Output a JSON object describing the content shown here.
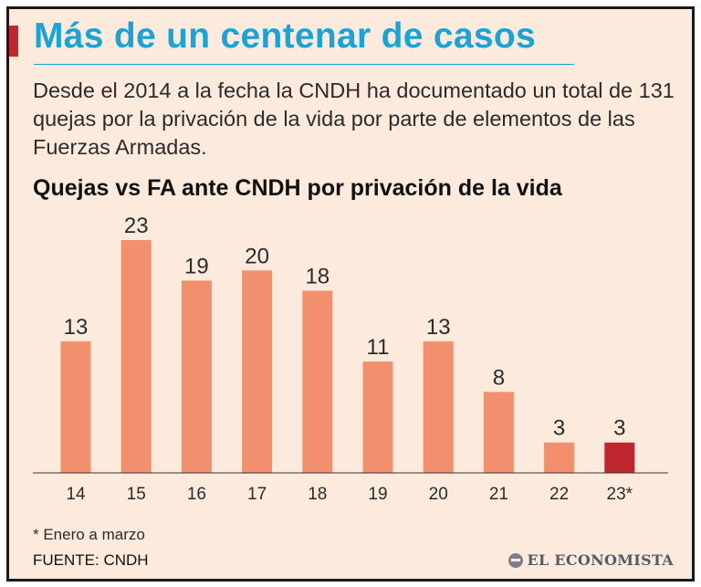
{
  "header": {
    "title": "Más de un centenar de casos",
    "intro": "Desde el 2014 a la fecha la CNDH ha documentado un total de 131 quejas por la privación de la vida por parte de elementos de las Fuerzas Armadas."
  },
  "colors": {
    "bar": "#f2906e",
    "bar_highlight": "#c0262d",
    "title": "#1aa3d8",
    "accent": "#c0262d"
  },
  "chart_data": {
    "type": "bar",
    "title": "Quejas vs FA ante CNDH por privación de la vida",
    "categories": [
      "14",
      "15",
      "16",
      "17",
      "18",
      "19",
      "20",
      "21",
      "22",
      "23*"
    ],
    "values": [
      13,
      23,
      19,
      20,
      18,
      11,
      13,
      8,
      3,
      3
    ],
    "highlight_index": 9,
    "xlabel": "",
    "ylabel": "",
    "ylim": [
      0,
      23
    ],
    "grid": false,
    "data_labels": true
  },
  "footnote": "* Enero a marzo",
  "source": "FUENTE: CNDH",
  "brand": {
    "icon": "globe-icon",
    "name": "EL ECONOMISTA"
  }
}
